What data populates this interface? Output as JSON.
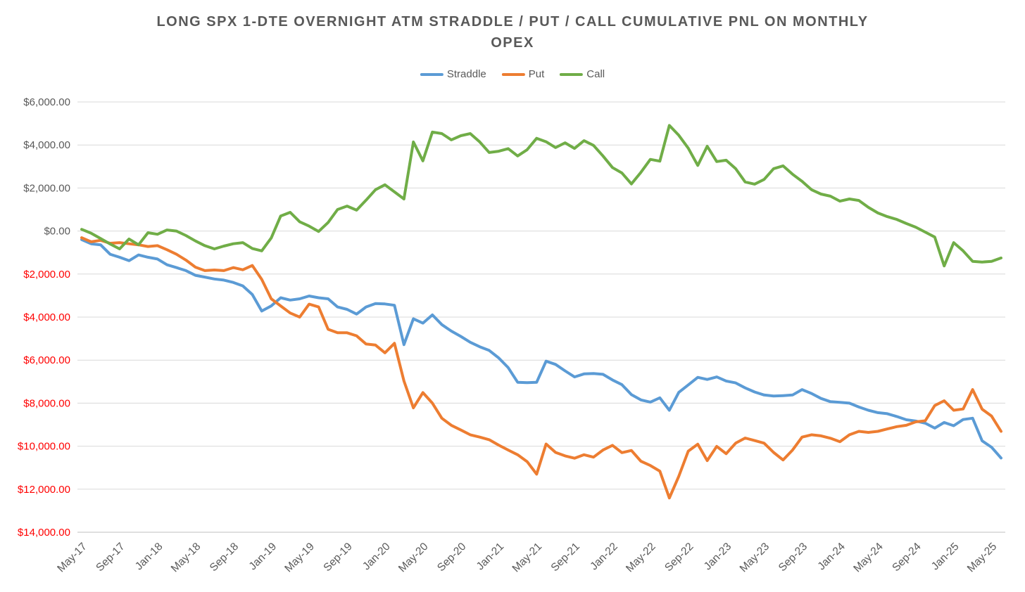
{
  "title_lines": [
    "LONG SPX 1-DTE OVERNIGHT ATM STRADDLE / PUT / CALL CUMULATIVE PNL ON MONTHLY",
    "OPEX"
  ],
  "chart_data": {
    "type": "line",
    "title": "LONG SPX 1-DTE OVERNIGHT ATM STRADDLE / PUT / CALL CUMULATIVE PNL ON MONTHLY OPEX",
    "xlabel": "",
    "ylabel": "",
    "grid": true,
    "legend_position": "top",
    "ylim": [
      -14000,
      6000
    ],
    "y_tick_step": 2000,
    "label_color": "#595959",
    "negative_label_color": "#FF0000",
    "gridline_color": "#D9D9D9",
    "axisline_color": "#BFBFBF",
    "y_ticks": [
      {
        "label": "$6,000.00",
        "negative": false
      },
      {
        "label": "$4,000.00",
        "negative": false
      },
      {
        "label": "$2,000.00",
        "negative": false
      },
      {
        "label": "$0.00",
        "negative": false
      },
      {
        "label": "$2,000.00",
        "negative": true
      },
      {
        "label": "$4,000.00",
        "negative": true
      },
      {
        "label": "$6,000.00",
        "negative": true
      },
      {
        "label": "$8,000.00",
        "negative": true
      },
      {
        "label": "$10,000.00",
        "negative": true
      },
      {
        "label": "$12,000.00",
        "negative": true
      },
      {
        "label": "$14,000.00",
        "negative": true
      }
    ],
    "x_tick_every": 4,
    "x_tick_labels": [
      "May-17",
      "Sep-17",
      "Jan-18",
      "May-18",
      "Sep-18",
      "Jan-19",
      "May-19",
      "Sep-19",
      "Jan-20",
      "May-20",
      "Sep-20",
      "Jan-21",
      "May-21",
      "Sep-21",
      "Jan-22",
      "May-22",
      "Sep-22",
      "Jan-23",
      "May-23",
      "Sep-23",
      "Jan-24",
      "May-24",
      "Sep-24",
      "Jan-25",
      "May-25"
    ],
    "categories": [
      "May-17",
      "Jun-17",
      "Jul-17",
      "Aug-17",
      "Sep-17",
      "Oct-17",
      "Nov-17",
      "Dec-17",
      "Jan-18",
      "Feb-18",
      "Mar-18",
      "Apr-18",
      "May-18",
      "Jun-18",
      "Jul-18",
      "Aug-18",
      "Sep-18",
      "Oct-18",
      "Nov-18",
      "Dec-18",
      "Jan-19",
      "Feb-19",
      "Mar-19",
      "Apr-19",
      "May-19",
      "Jun-19",
      "Jul-19",
      "Aug-19",
      "Sep-19",
      "Oct-19",
      "Nov-19",
      "Dec-19",
      "Jan-20",
      "Feb-20",
      "Mar-20",
      "Apr-20",
      "May-20",
      "Jun-20",
      "Jul-20",
      "Aug-20",
      "Sep-20",
      "Oct-20",
      "Nov-20",
      "Dec-20",
      "Jan-21",
      "Feb-21",
      "Mar-21",
      "Apr-21",
      "May-21",
      "Jun-21",
      "Jul-21",
      "Aug-21",
      "Sep-21",
      "Oct-21",
      "Nov-21",
      "Dec-21",
      "Jan-22",
      "Feb-22",
      "Mar-22",
      "Apr-22",
      "May-22",
      "Jun-22",
      "Jul-22",
      "Aug-22",
      "Sep-22",
      "Oct-22",
      "Nov-22",
      "Dec-22",
      "Jan-23",
      "Feb-23",
      "Mar-23",
      "Apr-23",
      "May-23",
      "Jun-23",
      "Jul-23",
      "Aug-23",
      "Sep-23",
      "Oct-23",
      "Nov-23",
      "Dec-23",
      "Jan-24",
      "Feb-24",
      "Mar-24",
      "Apr-24",
      "May-24",
      "Jun-24",
      "Jul-24",
      "Aug-24",
      "Sep-24",
      "Oct-24",
      "Nov-24",
      "Dec-24",
      "Jan-25",
      "Feb-25",
      "Mar-25",
      "Apr-25",
      "May-25",
      "Jun-25"
    ],
    "series": [
      {
        "name": "Straddle",
        "color": "#5B9BD5",
        "values": [
          -400,
          -590,
          -640,
          -1080,
          -1220,
          -1380,
          -1110,
          -1220,
          -1300,
          -1570,
          -1700,
          -1840,
          -2060,
          -2140,
          -2230,
          -2280,
          -2390,
          -2550,
          -2950,
          -3720,
          -3480,
          -3100,
          -3210,
          -3150,
          -3020,
          -3100,
          -3150,
          -3530,
          -3640,
          -3860,
          -3530,
          -3370,
          -3390,
          -3450,
          -5280,
          -4080,
          -4280,
          -3900,
          -4350,
          -4650,
          -4900,
          -5170,
          -5380,
          -5550,
          -5900,
          -6350,
          -7030,
          -7050,
          -7030,
          -6050,
          -6200,
          -6500,
          -6780,
          -6640,
          -6620,
          -6660,
          -6920,
          -7140,
          -7600,
          -7850,
          -7950,
          -7750,
          -8330,
          -7500,
          -7150,
          -6800,
          -6900,
          -6780,
          -6970,
          -7060,
          -7290,
          -7480,
          -7620,
          -7670,
          -7650,
          -7620,
          -7370,
          -7550,
          -7780,
          -7930,
          -7960,
          -8000,
          -8180,
          -8330,
          -8440,
          -8490,
          -8620,
          -8770,
          -8830,
          -8930,
          -9160,
          -8900,
          -9050,
          -8760,
          -8700,
          -9750,
          -10050,
          -10550
        ]
      },
      {
        "name": "Put",
        "color": "#ED7D31",
        "values": [
          -310,
          -500,
          -430,
          -570,
          -540,
          -590,
          -640,
          -720,
          -680,
          -870,
          -1080,
          -1350,
          -1680,
          -1840,
          -1810,
          -1840,
          -1700,
          -1800,
          -1600,
          -2250,
          -3150,
          -3480,
          -3810,
          -4000,
          -3400,
          -3530,
          -4570,
          -4730,
          -4730,
          -4870,
          -5250,
          -5300,
          -5660,
          -5220,
          -6970,
          -8220,
          -7510,
          -8000,
          -8700,
          -9030,
          -9250,
          -9470,
          -9580,
          -9700,
          -9950,
          -10180,
          -10400,
          -10720,
          -11300,
          -9900,
          -10290,
          -10450,
          -10560,
          -10400,
          -10510,
          -10180,
          -9960,
          -10300,
          -10200,
          -10700,
          -10900,
          -11160,
          -12410,
          -11400,
          -10230,
          -9910,
          -10670,
          -10010,
          -10350,
          -9860,
          -9620,
          -9740,
          -9860,
          -10290,
          -10640,
          -10180,
          -9580,
          -9470,
          -9520,
          -9630,
          -9790,
          -9470,
          -9310,
          -9360,
          -9310,
          -9200,
          -9090,
          -9030,
          -8870,
          -8820,
          -8110,
          -7890,
          -8330,
          -8270,
          -7370,
          -8280,
          -8600,
          -9310
        ]
      },
      {
        "name": "Call",
        "color": "#70AD47",
        "values": [
          80,
          -100,
          -350,
          -600,
          -830,
          -370,
          -640,
          -80,
          -150,
          50,
          0,
          -210,
          -460,
          -680,
          -830,
          -700,
          -590,
          -540,
          -810,
          -920,
          -320,
          700,
          870,
          430,
          230,
          -20,
          400,
          1000,
          1160,
          970,
          1430,
          1920,
          2150,
          1820,
          1490,
          4140,
          3260,
          4600,
          4530,
          4240,
          4430,
          4530,
          4140,
          3650,
          3710,
          3830,
          3490,
          3780,
          4310,
          4150,
          3880,
          4100,
          3840,
          4200,
          3980,
          3490,
          2950,
          2700,
          2190,
          2730,
          3330,
          3250,
          4910,
          4450,
          3850,
          3050,
          3940,
          3230,
          3290,
          2900,
          2280,
          2180,
          2400,
          2900,
          3030,
          2640,
          2310,
          1920,
          1720,
          1620,
          1390,
          1490,
          1420,
          1100,
          840,
          670,
          540,
          350,
          180,
          -50,
          -280,
          -1620,
          -540,
          -920,
          -1410,
          -1440,
          -1410,
          -1250
        ]
      }
    ]
  }
}
